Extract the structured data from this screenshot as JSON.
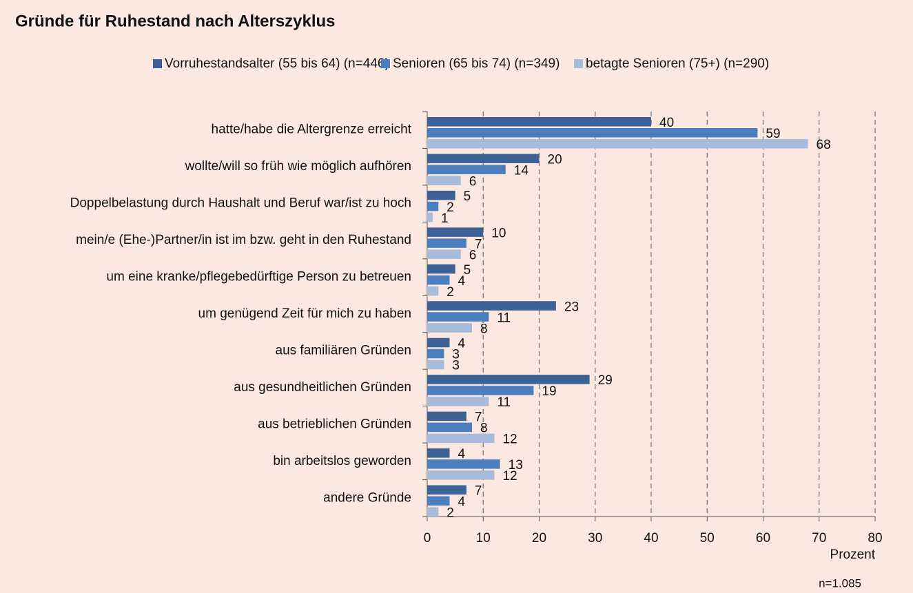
{
  "chart_data": {
    "type": "hbar",
    "title": "Gründe für Ruhestand nach Alterszyklus",
    "categories": [
      "hatte/habe die Altergrenze erreicht",
      "wollte/will so früh wie möglich aufhören",
      "Doppelbelastung durch Haushalt und Beruf war/ist zu hoch",
      "mein/e (Ehe-)Partner/in ist im bzw. geht in den Ruhestand",
      "um eine kranke/pflegebedürftige Person zu betreuen",
      "um genügend Zeit für mich zu haben",
      "aus familiären Gründen",
      "aus gesundheitlichen Gründen",
      "aus betrieblichen Gründen",
      "bin arbeitslos geworden",
      "andere Gründe"
    ],
    "series": [
      {
        "name": "Vorruhestandsalter (55 bis 64) (n=446)",
        "color": "#3d6194",
        "values": [
          40,
          20,
          5,
          10,
          5,
          23,
          4,
          29,
          7,
          4,
          7
        ]
      },
      {
        "name": "Senioren (65 bis 74) (n=349)",
        "color": "#4a7ebf",
        "values": [
          59,
          14,
          2,
          7,
          4,
          11,
          3,
          19,
          8,
          13,
          4
        ]
      },
      {
        "name": "betagte Senioren (75+) (n=290)",
        "color": "#a8bbdb",
        "values": [
          68,
          6,
          1,
          6,
          2,
          8,
          3,
          11,
          12,
          12,
          2
        ]
      }
    ],
    "xlim": [
      0,
      80
    ],
    "xticks": [
      0,
      10,
      20,
      30,
      40,
      50,
      60,
      70,
      80
    ],
    "xlabel": "Prozent",
    "note": "n=1.085",
    "grid": true
  }
}
